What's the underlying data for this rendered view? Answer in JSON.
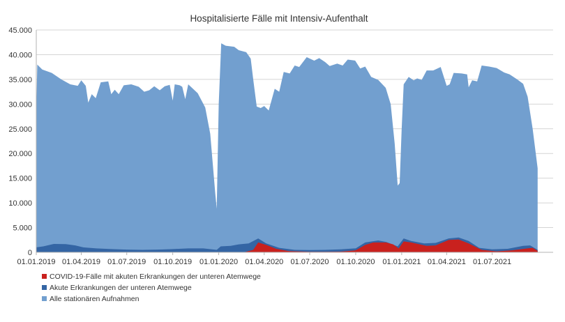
{
  "chart_data": {
    "type": "area",
    "title": "Hospitalisierte Fälle mit Intensiv-Aufenthalt",
    "xlabel": "",
    "ylabel": "",
    "ylim": [
      0,
      45000
    ],
    "yticks": [
      0,
      5000,
      10000,
      15000,
      20000,
      25000,
      30000,
      35000,
      40000,
      45000
    ],
    "ytick_labels": [
      "0",
      "5.000",
      "10.000",
      "15.000",
      "20.000",
      "25.000",
      "30.000",
      "35.000",
      "40.000",
      "45.000"
    ],
    "xlim": [
      "2019-01-01",
      "2021-10-31"
    ],
    "xticks": [
      "2019-01-01",
      "2019-04-01",
      "2019-07-01",
      "2019-10-01",
      "2020-01-01",
      "2020-04-01",
      "2020-07-01",
      "2020-10-01",
      "2021-01-01",
      "2021-04-01",
      "2021-07-01"
    ],
    "xtick_labels": [
      "01.01.2019",
      "01.04.2019",
      "01.07.2019",
      "01.10.2019",
      "01.01.2020",
      "01.04.2020",
      "01.07.2020",
      "01.10.2020",
      "01.01.2021",
      "01.04.2021",
      "01.07.2021"
    ],
    "grid": "horizontal",
    "legend_position": "bottom-left",
    "stacking": "overlapping",
    "series": [
      {
        "name": "Alle stationären Aufnahmen",
        "color": "#729fcf",
        "points": [
          [
            "2019-01-01",
            28000
          ],
          [
            "2019-01-03",
            38000
          ],
          [
            "2019-01-13",
            37000
          ],
          [
            "2019-02-01",
            36300
          ],
          [
            "2019-02-20",
            35000
          ],
          [
            "2019-03-10",
            34000
          ],
          [
            "2019-03-25",
            33700
          ],
          [
            "2019-04-01",
            34800
          ],
          [
            "2019-04-10",
            33700
          ],
          [
            "2019-04-15",
            30300
          ],
          [
            "2019-04-22",
            32000
          ],
          [
            "2019-04-30",
            31200
          ],
          [
            "2019-05-10",
            34400
          ],
          [
            "2019-05-25",
            34600
          ],
          [
            "2019-05-31",
            32000
          ],
          [
            "2019-06-07",
            32900
          ],
          [
            "2019-06-15",
            32000
          ],
          [
            "2019-06-25",
            33800
          ],
          [
            "2019-07-10",
            34000
          ],
          [
            "2019-07-25",
            33500
          ],
          [
            "2019-08-05",
            32500
          ],
          [
            "2019-08-15",
            32800
          ],
          [
            "2019-08-25",
            33600
          ],
          [
            "2019-09-05",
            32800
          ],
          [
            "2019-09-15",
            33600
          ],
          [
            "2019-09-25",
            33900
          ],
          [
            "2019-10-01",
            30700
          ],
          [
            "2019-10-05",
            34000
          ],
          [
            "2019-10-15",
            33800
          ],
          [
            "2019-10-20",
            33500
          ],
          [
            "2019-10-26",
            31000
          ],
          [
            "2019-11-01",
            34000
          ],
          [
            "2019-11-20",
            32200
          ],
          [
            "2019-12-05",
            29300
          ],
          [
            "2019-12-15",
            24000
          ],
          [
            "2019-12-25",
            12000
          ],
          [
            "2019-12-28",
            8800
          ],
          [
            "2020-01-01",
            30000
          ],
          [
            "2020-01-06",
            42300
          ],
          [
            "2020-01-15",
            41800
          ],
          [
            "2020-02-01",
            41600
          ],
          [
            "2020-02-10",
            40900
          ],
          [
            "2020-02-25",
            40500
          ],
          [
            "2020-03-05",
            39200
          ],
          [
            "2020-03-10",
            35000
          ],
          [
            "2020-03-17",
            29500
          ],
          [
            "2020-03-25",
            29200
          ],
          [
            "2020-04-01",
            29600
          ],
          [
            "2020-04-10",
            28700
          ],
          [
            "2020-04-22",
            33100
          ],
          [
            "2020-05-01",
            32500
          ],
          [
            "2020-05-10",
            36500
          ],
          [
            "2020-05-22",
            36200
          ],
          [
            "2020-06-01",
            37800
          ],
          [
            "2020-06-10",
            37500
          ],
          [
            "2020-06-25",
            39500
          ],
          [
            "2020-07-10",
            38800
          ],
          [
            "2020-07-20",
            39300
          ],
          [
            "2020-08-01",
            38500
          ],
          [
            "2020-08-10",
            37700
          ],
          [
            "2020-08-25",
            38200
          ],
          [
            "2020-09-05",
            37800
          ],
          [
            "2020-09-15",
            39000
          ],
          [
            "2020-09-30",
            38800
          ],
          [
            "2020-10-10",
            37200
          ],
          [
            "2020-10-20",
            37600
          ],
          [
            "2020-11-01",
            35500
          ],
          [
            "2020-11-15",
            34900
          ],
          [
            "2020-11-30",
            33300
          ],
          [
            "2020-12-10",
            30000
          ],
          [
            "2020-12-18",
            22000
          ],
          [
            "2020-12-24",
            13500
          ],
          [
            "2020-12-28",
            14000
          ],
          [
            "2021-01-01",
            25000
          ],
          [
            "2021-01-05",
            34000
          ],
          [
            "2021-01-15",
            35500
          ],
          [
            "2021-01-25",
            34800
          ],
          [
            "2021-02-01",
            35200
          ],
          [
            "2021-02-10",
            34900
          ],
          [
            "2021-02-20",
            36800
          ],
          [
            "2021-03-05",
            36800
          ],
          [
            "2021-03-20",
            37500
          ],
          [
            "2021-04-01",
            33700
          ],
          [
            "2021-04-07",
            34000
          ],
          [
            "2021-04-15",
            36300
          ],
          [
            "2021-05-01",
            36200
          ],
          [
            "2021-05-12",
            36000
          ],
          [
            "2021-05-15",
            33400
          ],
          [
            "2021-05-22",
            34800
          ],
          [
            "2021-06-01",
            34600
          ],
          [
            "2021-06-10",
            37800
          ],
          [
            "2021-06-25",
            37600
          ],
          [
            "2021-07-10",
            37300
          ],
          [
            "2021-07-25",
            36400
          ],
          [
            "2021-08-05",
            36000
          ],
          [
            "2021-08-20",
            35000
          ],
          [
            "2021-09-01",
            34100
          ],
          [
            "2021-09-10",
            31500
          ],
          [
            "2021-09-20",
            25000
          ],
          [
            "2021-09-30",
            17000
          ]
        ]
      },
      {
        "name": "Akute Erkrankungen der unteren Atemwege",
        "color": "#3465a4",
        "points": [
          [
            "2019-01-01",
            1000
          ],
          [
            "2019-01-15",
            1200
          ],
          [
            "2019-02-05",
            1700
          ],
          [
            "2019-03-01",
            1650
          ],
          [
            "2019-03-20",
            1400
          ],
          [
            "2019-04-05",
            1000
          ],
          [
            "2019-05-01",
            800
          ],
          [
            "2019-06-01",
            650
          ],
          [
            "2019-07-01",
            550
          ],
          [
            "2019-08-01",
            500
          ],
          [
            "2019-09-01",
            550
          ],
          [
            "2019-10-01",
            650
          ],
          [
            "2019-11-01",
            800
          ],
          [
            "2019-12-01",
            800
          ],
          [
            "2019-12-28",
            500
          ],
          [
            "2020-01-05",
            1200
          ],
          [
            "2020-01-25",
            1300
          ],
          [
            "2020-02-10",
            1600
          ],
          [
            "2020-03-01",
            1800
          ],
          [
            "2020-03-20",
            2800
          ],
          [
            "2020-04-05",
            1800
          ],
          [
            "2020-05-01",
            900
          ],
          [
            "2020-06-01",
            500
          ],
          [
            "2020-07-01",
            450
          ],
          [
            "2020-08-01",
            500
          ],
          [
            "2020-09-01",
            600
          ],
          [
            "2020-10-01",
            800
          ],
          [
            "2020-10-20",
            2000
          ],
          [
            "2020-11-15",
            2400
          ],
          [
            "2020-12-01",
            2100
          ],
          [
            "2020-12-24",
            1200
          ],
          [
            "2021-01-05",
            2800
          ],
          [
            "2021-01-20",
            2300
          ],
          [
            "2021-02-15",
            1800
          ],
          [
            "2021-03-10",
            1900
          ],
          [
            "2021-04-05",
            2800
          ],
          [
            "2021-04-25",
            3000
          ],
          [
            "2021-05-15",
            2300
          ],
          [
            "2021-06-05",
            900
          ],
          [
            "2021-07-01",
            600
          ],
          [
            "2021-08-01",
            700
          ],
          [
            "2021-09-01",
            1300
          ],
          [
            "2021-09-15",
            1400
          ],
          [
            "2021-09-30",
            500
          ]
        ]
      },
      {
        "name": "COVID-19-Fälle mit akuten Erkrankungen der unteren Atemwege",
        "color": "#c9211e",
        "points": [
          [
            "2019-01-01",
            0
          ],
          [
            "2020-02-20",
            0
          ],
          [
            "2020-03-10",
            500
          ],
          [
            "2020-03-20",
            2000
          ],
          [
            "2020-04-05",
            1500
          ],
          [
            "2020-04-25",
            700
          ],
          [
            "2020-05-20",
            250
          ],
          [
            "2020-06-30",
            100
          ],
          [
            "2020-08-01",
            100
          ],
          [
            "2020-09-01",
            150
          ],
          [
            "2020-10-01",
            400
          ],
          [
            "2020-10-20",
            1500
          ],
          [
            "2020-11-05",
            2000
          ],
          [
            "2020-12-01",
            2000
          ],
          [
            "2020-12-15",
            1600
          ],
          [
            "2020-12-26",
            800
          ],
          [
            "2021-01-05",
            2200
          ],
          [
            "2021-01-20",
            2000
          ],
          [
            "2021-02-20",
            1300
          ],
          [
            "2021-03-10",
            1400
          ],
          [
            "2021-04-05",
            2500
          ],
          [
            "2021-04-25",
            2600
          ],
          [
            "2021-05-15",
            1800
          ],
          [
            "2021-06-10",
            500
          ],
          [
            "2021-07-10",
            200
          ],
          [
            "2021-08-10",
            400
          ],
          [
            "2021-09-10",
            800
          ],
          [
            "2021-09-20",
            900
          ],
          [
            "2021-09-30",
            300
          ]
        ]
      }
    ]
  }
}
